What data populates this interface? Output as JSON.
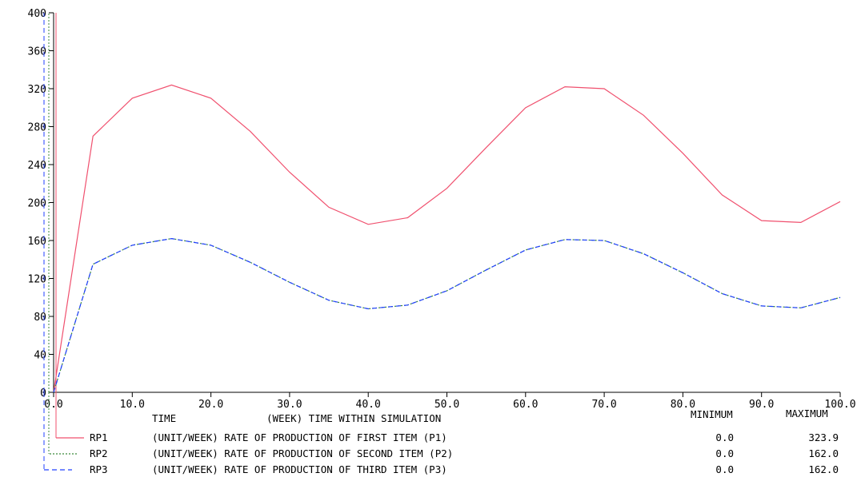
{
  "chart_data": {
    "type": "line",
    "x": [
      0,
      5,
      10,
      15,
      20,
      25,
      30,
      35,
      40,
      45,
      50,
      55,
      60,
      65,
      70,
      75,
      80,
      85,
      90,
      95,
      100
    ],
    "xlim": [
      0,
      100
    ],
    "ylim": [
      0,
      400
    ],
    "x_ticks": [
      "0.0",
      "10.0",
      "20.0",
      "30.0",
      "40.0",
      "50.0",
      "60.0",
      "70.0",
      "80.0",
      "90.0",
      "100.0"
    ],
    "y_ticks": [
      "0",
      "40",
      "80",
      "120",
      "160",
      "200",
      "240",
      "280",
      "320",
      "360",
      "400"
    ],
    "grid": false,
    "series": [
      {
        "name": "RP1",
        "color": "#f0506e",
        "dash": "solid",
        "values": [
          0,
          270,
          310,
          323.9,
          310,
          275,
          232,
          195,
          177,
          184,
          215,
          258,
          300,
          322,
          320,
          292,
          252,
          208,
          181,
          179,
          201
        ]
      },
      {
        "name": "RP2",
        "color": "#3a8a3a",
        "dash": "dotted",
        "values": [
          0,
          135,
          155,
          162,
          155,
          137,
          116,
          97,
          88,
          92,
          107,
          129,
          150,
          161,
          160,
          146,
          126,
          104,
          91,
          89,
          100
        ]
      },
      {
        "name": "RP3",
        "color": "#2040ff",
        "dash": "dashed",
        "values": [
          0,
          135,
          155,
          162,
          155,
          137,
          116,
          97,
          88,
          92,
          107,
          129,
          150,
          161,
          160,
          146,
          126,
          104,
          91,
          89,
          100
        ]
      }
    ],
    "info": {
      "time_label": "TIME",
      "time_desc": "(WEEK) TIME WITHIN SIMULATION",
      "minimum_header": "MINIMUM",
      "maximum_header": "MAXIMUM",
      "rows": [
        {
          "name": "RP1",
          "desc": "(UNIT/WEEK) RATE OF PRODUCTION OF FIRST ITEM (P1)",
          "min": "0.0",
          "max": "323.9"
        },
        {
          "name": "RP2",
          "desc": "(UNIT/WEEK) RATE OF PRODUCTION OF SECOND ITEM (P2)",
          "min": "0.0",
          "max": "162.0"
        },
        {
          "name": "RP3",
          "desc": "(UNIT/WEEK) RATE OF PRODUCTION OF THIRD ITEM (P3)",
          "min": "0.0",
          "max": "162.0"
        }
      ]
    }
  }
}
